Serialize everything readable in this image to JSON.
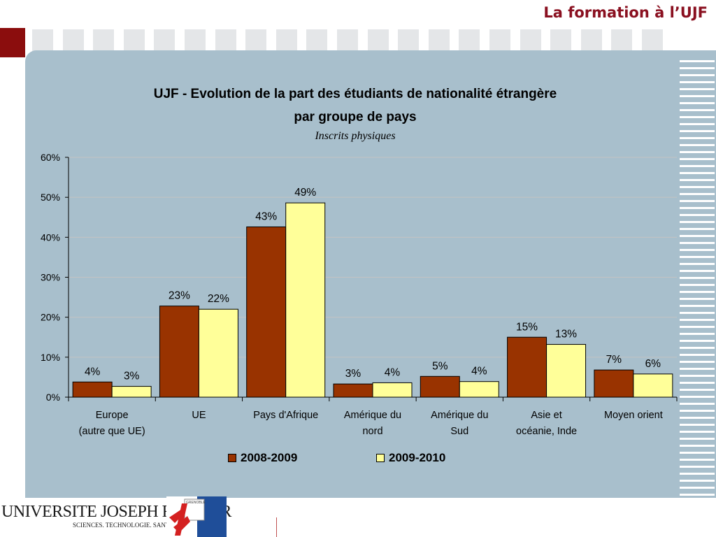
{
  "header": {
    "title": "La formation à l’UJF"
  },
  "colors": {
    "accent": "#8b0d0d",
    "panel": "#a8bfcc",
    "series1": "#993300",
    "series2": "#ffff99"
  },
  "chart_data": {
    "type": "bar",
    "title_line1": "UJF - Evolution de la part des étudiants de nationalité étrangère",
    "title_line2": "par groupe de pays",
    "subtitle": "Inscrits physiques",
    "categories": [
      [
        "Europe",
        "(autre que UE)"
      ],
      [
        "UE"
      ],
      [
        "Pays d'Afrique"
      ],
      [
        "Amérique du",
        "nord"
      ],
      [
        "Amérique du",
        "Sud"
      ],
      [
        "Asie et",
        "océanie, Inde"
      ],
      [
        "Moyen orient"
      ]
    ],
    "series": [
      {
        "name": "2008-2009",
        "color": "#993300",
        "values": [
          3.8,
          22.8,
          42.6,
          3.3,
          5.2,
          15.0,
          6.8
        ],
        "labels": [
          "4%",
          "23%",
          "43%",
          "3%",
          "5%",
          "15%",
          "7%"
        ]
      },
      {
        "name": "2009-2010",
        "color": "#ffff99",
        "values": [
          2.7,
          22.0,
          48.6,
          3.6,
          3.9,
          13.2,
          5.8
        ],
        "labels": [
          "3%",
          "22%",
          "49%",
          "4%",
          "4%",
          "13%",
          "6%"
        ]
      }
    ],
    "yticks": [
      "0%",
      "10%",
      "20%",
      "30%",
      "40%",
      "50%",
      "60%"
    ],
    "ylim": [
      0,
      60
    ],
    "grid": true,
    "legend_position": "bottom"
  },
  "footer": {
    "university": "UNIVERSITE JOSEPH FOURIER",
    "tagline": "SCIENCES. TECHNOLOGIE. SANTÉ",
    "badge_text": "GRENOBLE"
  }
}
